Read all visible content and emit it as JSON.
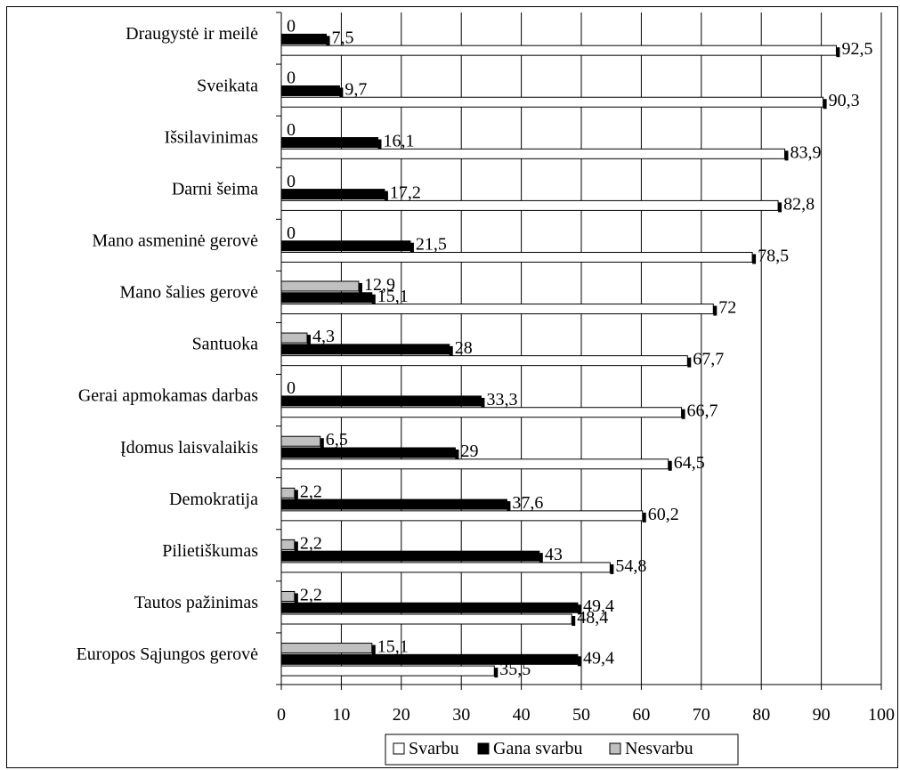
{
  "chart_data": {
    "type": "bar",
    "orientation": "horizontal",
    "categories": [
      "Draugystė ir meilė",
      "Sveikata",
      "Išsilavinimas",
      "Darni šeima",
      "Mano asmeninė gerovė",
      "Mano šalies gerovė",
      "Santuoka",
      "Gerai apmokamas darbas",
      "Įdomus laisvalaikis",
      "Demokratija",
      "Pilietiškumas",
      "Tautos pažinimas",
      "Europos Sąjungos gerovė"
    ],
    "series": [
      {
        "name": "Svarbu",
        "color": "#ffffff",
        "values": [
          92.5,
          90.3,
          83.9,
          82.8,
          78.5,
          72,
          67.7,
          66.7,
          64.5,
          60.2,
          54.8,
          48.4,
          35.5
        ],
        "labels": [
          "92,5",
          "90,3",
          "83,9",
          "82,8",
          "78,5",
          "72",
          "67,7",
          "66,7",
          "64,5",
          "60,2",
          "54,8",
          "48,4",
          "35,5"
        ]
      },
      {
        "name": "Gana svarbu",
        "color": "#000000",
        "values": [
          7.5,
          9.7,
          16.1,
          17.2,
          21.5,
          15.1,
          28,
          33.3,
          29,
          37.6,
          43,
          49.4,
          49.4
        ],
        "labels": [
          "7,5",
          "9,7",
          "16,1",
          "17,2",
          "21,5",
          "15,1",
          "28",
          "33,3",
          "29",
          "37,6",
          "43",
          "49,4",
          "49,4"
        ]
      },
      {
        "name": "Nesvarbu",
        "color": "#c0c0c0",
        "values": [
          0,
          0,
          0,
          0,
          0,
          12.9,
          4.3,
          0,
          6.5,
          2.2,
          2.2,
          2.2,
          15.1
        ],
        "labels": [
          "0",
          "0",
          "0",
          "0",
          "0",
          "12,9",
          "4,3",
          "0",
          "6,5",
          "2,2",
          "2,2",
          "2,2",
          "15,1"
        ]
      }
    ],
    "xlim": [
      0,
      100
    ],
    "ticks": [
      "0",
      "10",
      "20",
      "30",
      "40",
      "50",
      "60",
      "70",
      "80",
      "90",
      "100"
    ],
    "grid": true,
    "legend_position": "bottom"
  }
}
